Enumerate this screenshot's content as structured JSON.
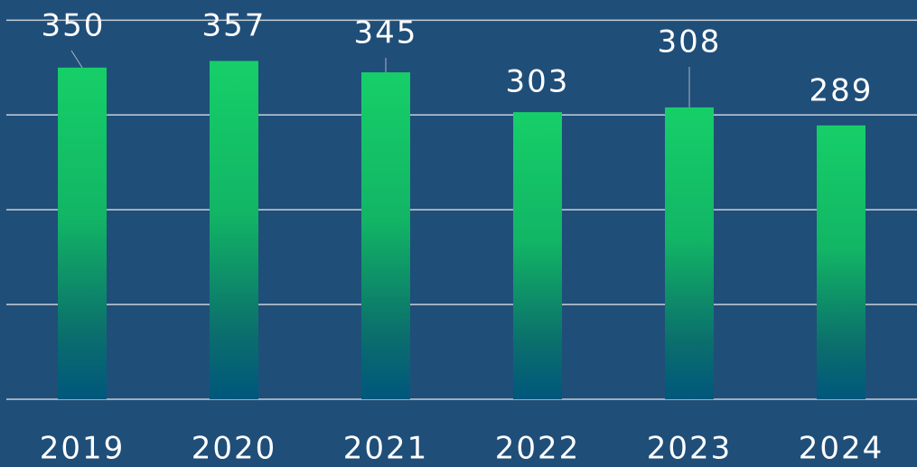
{
  "chart_data": {
    "type": "bar",
    "categories": [
      "2019",
      "2020",
      "2021",
      "2022",
      "2023",
      "2024"
    ],
    "values": [
      350,
      357,
      345,
      303,
      308,
      289
    ],
    "ylim": [
      0,
      400
    ],
    "yticks": [
      0,
      100,
      200,
      300,
      400
    ],
    "grid": true
  }
}
